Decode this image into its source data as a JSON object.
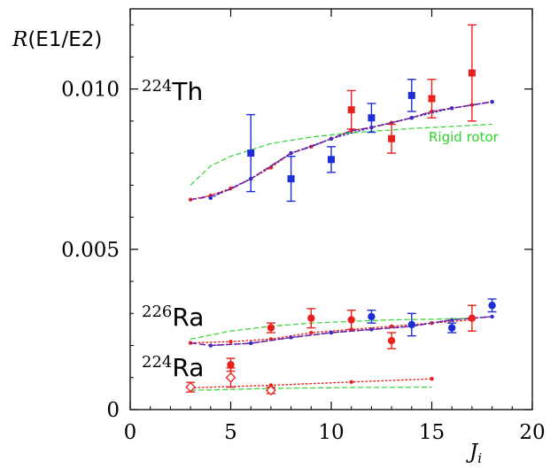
{
  "chart_data": {
    "type": "scatter",
    "xlabel": "J_i",
    "ylabel": "R(E1/E2)",
    "xlim": [
      0,
      20
    ],
    "ylim": [
      0,
      0.0125
    ],
    "x_ticks": [
      "0",
      "5",
      "10",
      "15",
      "20"
    ],
    "x_tick_values": [
      0,
      5,
      10,
      15,
      20
    ],
    "y_ticks": [
      "0",
      "0.005",
      "0.010"
    ],
    "y_tick_values": [
      0,
      0.005,
      0.01
    ],
    "grid": false,
    "legend": "none",
    "labels": {
      "th224": {
        "sup": "224",
        "el": "Th"
      },
      "ra226": {
        "sup": "226",
        "el": "Ra"
      },
      "ra224": {
        "sup": "224",
        "el": "Ra"
      },
      "rigid": "Rigid rotor"
    },
    "colors": {
      "red": "#e8211e",
      "blue": "#1c2fd6",
      "green": "#2ed42e",
      "purple": "#7a1f9e"
    },
    "series": [
      {
        "group": "224Th",
        "color": "red",
        "marker": "square",
        "points": [
          {
            "x": 11,
            "y": 0.00935,
            "err": 0.0006
          },
          {
            "x": 13,
            "y": 0.00845,
            "err": 0.00045
          },
          {
            "x": 15,
            "y": 0.0097,
            "err": 0.0006
          },
          {
            "x": 17,
            "y": 0.0105,
            "err": 0.0015
          }
        ]
      },
      {
        "group": "224Th",
        "color": "blue",
        "marker": "square",
        "points": [
          {
            "x": 6,
            "y": 0.008,
            "err": 0.0012
          },
          {
            "x": 8,
            "y": 0.0072,
            "err": 0.0007
          },
          {
            "x": 10,
            "y": 0.0078,
            "err": 0.0004
          },
          {
            "x": 12,
            "y": 0.0091,
            "err": 0.00045
          },
          {
            "x": 14,
            "y": 0.0098,
            "err": 0.0005
          }
        ]
      },
      {
        "group": "226Ra",
        "color": "red",
        "marker": "circle",
        "points": [
          {
            "x": 7,
            "y": 0.00255,
            "err": 0.00015
          },
          {
            "x": 9,
            "y": 0.00285,
            "err": 0.0003
          },
          {
            "x": 11,
            "y": 0.0028,
            "err": 0.0003
          },
          {
            "x": 13,
            "y": 0.00215,
            "err": 0.00025
          },
          {
            "x": 17,
            "y": 0.00285,
            "err": 0.0004
          }
        ]
      },
      {
        "group": "226Ra",
        "color": "blue",
        "marker": "circle",
        "points": [
          {
            "x": 12,
            "y": 0.0029,
            "err": 0.0002
          },
          {
            "x": 14,
            "y": 0.00265,
            "err": 0.00035
          },
          {
            "x": 16,
            "y": 0.00255,
            "err": 0.00015
          },
          {
            "x": 18,
            "y": 0.00325,
            "err": 0.0002
          }
        ]
      },
      {
        "group": "224Ra",
        "color": "red",
        "marker": "circle",
        "points": [
          {
            "x": 5,
            "y": 0.0014,
            "err": 0.0002
          }
        ]
      },
      {
        "group": "224Ra",
        "color": "red",
        "marker": "open-diamond",
        "points": [
          {
            "x": 3,
            "y": 0.0007,
            "err": 0.00015
          },
          {
            "x": 5,
            "y": 0.001,
            "err": 0.0003
          },
          {
            "x": 7,
            "y": 0.0006,
            "err": 0.0001
          }
        ]
      }
    ],
    "curves": [
      {
        "group": "224Th",
        "style": "red-dotted",
        "x": [
          3,
          4,
          5,
          6,
          7,
          8,
          9,
          10,
          11,
          12,
          13,
          14,
          15,
          16,
          17,
          18
        ],
        "y": [
          0.00655,
          0.00668,
          0.0069,
          0.0072,
          0.00755,
          0.008,
          0.0082,
          0.00845,
          0.0087,
          0.0088,
          0.00895,
          0.0091,
          0.0093,
          0.0094,
          0.0095,
          0.0096
        ]
      },
      {
        "group": "224Th",
        "style": "blue-dotted",
        "x": [
          4,
          6,
          8,
          10,
          12,
          14,
          16,
          18
        ],
        "y": [
          0.0066,
          0.0072,
          0.008,
          0.00845,
          0.0088,
          0.0091,
          0.0094,
          0.0096
        ]
      },
      {
        "group": "224Th",
        "style": "purple-dashed",
        "x": [
          3,
          4,
          5,
          6,
          7,
          8,
          9,
          10,
          11,
          12,
          13,
          14,
          15,
          16,
          17,
          18
        ],
        "y": [
          0.00655,
          0.00665,
          0.00688,
          0.0072,
          0.0076,
          0.008,
          0.0082,
          0.00845,
          0.0087,
          0.0088,
          0.00895,
          0.0091,
          0.0093,
          0.0094,
          0.0095,
          0.0096
        ]
      },
      {
        "group": "224Th",
        "style": "green-dashed",
        "x": [
          3,
          4,
          5,
          6,
          7,
          8,
          9,
          10,
          11,
          12,
          13,
          14,
          15,
          16,
          17,
          18
        ],
        "y": [
          0.007,
          0.0076,
          0.0079,
          0.0081,
          0.0083,
          0.0084,
          0.0085,
          0.00857,
          0.00863,
          0.00868,
          0.00872,
          0.00877,
          0.0088,
          0.00883,
          0.00887,
          0.0089
        ]
      },
      {
        "group": "226Ra",
        "style": "red-dotted",
        "x": [
          3,
          5,
          7,
          9,
          11,
          13,
          15,
          17
        ],
        "y": [
          0.00208,
          0.00212,
          0.0022,
          0.0024,
          0.0025,
          0.0026,
          0.0027,
          0.0028
        ]
      },
      {
        "group": "226Ra",
        "style": "blue-dotted",
        "x": [
          4,
          6,
          8,
          10,
          12,
          14,
          16,
          18
        ],
        "y": [
          0.002,
          0.00207,
          0.00225,
          0.0024,
          0.0025,
          0.0026,
          0.0028,
          0.0029
        ]
      },
      {
        "group": "226Ra",
        "style": "purple-dashed",
        "x": [
          3,
          4,
          6,
          8,
          10,
          12,
          14,
          16,
          18
        ],
        "y": [
          0.00208,
          0.002,
          0.00207,
          0.00225,
          0.0024,
          0.0025,
          0.0026,
          0.0028,
          0.0029
        ]
      },
      {
        "group": "226Ra",
        "style": "green-dashed",
        "x": [
          3,
          5,
          7,
          9,
          11,
          13,
          15,
          17
        ],
        "y": [
          0.0022,
          0.00245,
          0.0026,
          0.0027,
          0.00275,
          0.0028,
          0.00282,
          0.00285
        ]
      },
      {
        "group": "224Ra",
        "style": "red-dotted",
        "x": [
          3,
          7,
          11,
          15
        ],
        "y": [
          0.00068,
          0.00076,
          0.00086,
          0.00096
        ]
      },
      {
        "group": "224Ra",
        "style": "green-dashed",
        "x": [
          3,
          7,
          11,
          15
        ],
        "y": [
          0.0006,
          0.00066,
          0.00069,
          0.0007
        ]
      }
    ]
  }
}
